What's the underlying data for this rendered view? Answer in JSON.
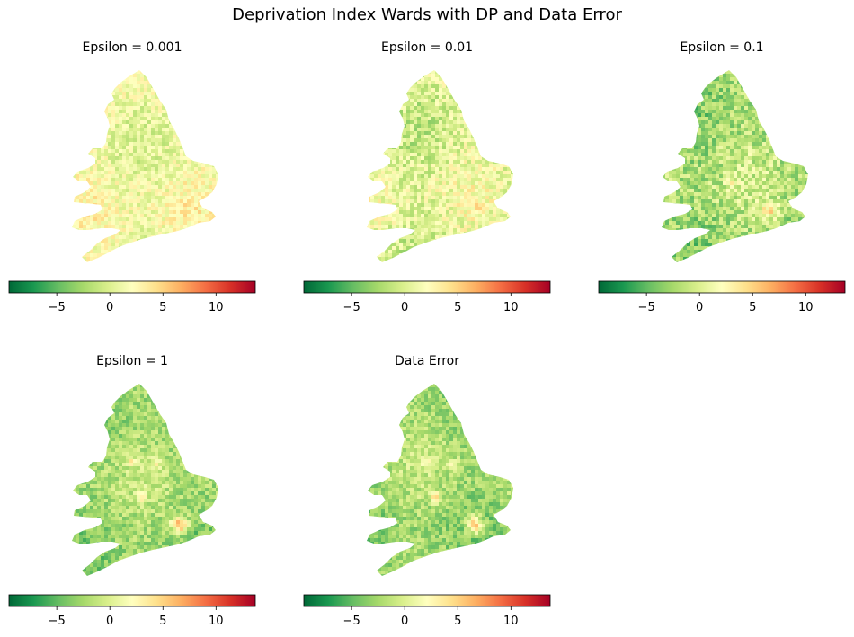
{
  "figure": {
    "suptitle": "Deprivation Index Wards with DP and Data Error"
  },
  "chart_data": {
    "type": "heatmap",
    "title": "Deprivation Index Wards with DP and Data Error",
    "colormap": "RdYlGn_r",
    "color_range": [
      -9.5,
      13.7
    ],
    "colorbar_ticks": [
      -5,
      0,
      5,
      10
    ],
    "colorbar_tick_labels": [
      "−5",
      "0",
      "5",
      "10"
    ],
    "legend_placement": "bottom of each panel",
    "panels": [
      {
        "title": "Epsilon = 0.001",
        "mean_value": 1.5,
        "spread": 2.2,
        "london_hotspot": 1.0
      },
      {
        "title": "Epsilon = 0.01",
        "mean_value": 0.5,
        "spread": 2.6,
        "london_hotspot": 1.5
      },
      {
        "title": "Epsilon = 0.1",
        "mean_value": -2.0,
        "spread": 2.8,
        "london_hotspot": 6.0
      },
      {
        "title": "Epsilon = 1",
        "mean_value": -2.5,
        "spread": 2.2,
        "london_hotspot": 9.0
      },
      {
        "title": "Data Error",
        "mean_value": -2.5,
        "spread": 2.2,
        "london_hotspot": 9.0
      }
    ]
  },
  "colors": {
    "cmap_stops": [
      "#006837",
      "#1a9850",
      "#66bd63",
      "#a6d96a",
      "#d9ef8b",
      "#ffffbf",
      "#fee08b",
      "#fdae61",
      "#f46d43",
      "#d73027",
      "#a50026"
    ]
  }
}
